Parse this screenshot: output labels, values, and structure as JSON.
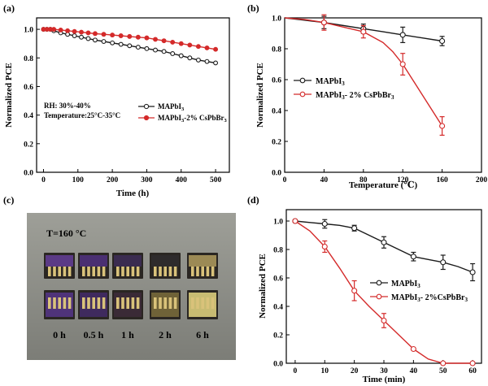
{
  "panel_labels": [
    "(a)",
    "(b)",
    "(c)",
    "(d)"
  ],
  "colors": {
    "black": "#1a1a1a",
    "red": "#d42a2a"
  },
  "chart_data": [
    {
      "id": "a",
      "type": "line",
      "xlabel": "Time (h)",
      "ylabel": "Normalized PCE",
      "xlim": [
        -20,
        540
      ],
      "ylim": [
        0.0,
        1.08
      ],
      "xticks": [
        0,
        100,
        200,
        300,
        400,
        500
      ],
      "yticks": [
        0.0,
        0.2,
        0.4,
        0.6,
        0.8,
        1.0
      ],
      "annotations": [
        "RH: 30%-40%",
        "Temperature:25°C-35°C"
      ],
      "series": [
        {
          "name": "MAPbI",
          "name_sub": "3",
          "color": "#1a1a1a",
          "x": [
            0,
            10,
            20,
            30,
            50,
            70,
            90,
            110,
            130,
            150,
            175,
            200,
            225,
            250,
            275,
            300,
            325,
            350,
            375,
            400,
            425,
            450,
            475,
            500
          ],
          "y": [
            1.0,
            1.0,
            1.0,
            0.99,
            0.975,
            0.965,
            0.955,
            0.945,
            0.935,
            0.925,
            0.915,
            0.905,
            0.895,
            0.885,
            0.875,
            0.865,
            0.855,
            0.845,
            0.83,
            0.815,
            0.8,
            0.785,
            0.775,
            0.765
          ]
        },
        {
          "name": "MAPbI",
          "name_sub": "3",
          "name_suffix": "-2% CsPbBr",
          "name_suffix_sub": "3",
          "color": "#d42a2a",
          "x": [
            0,
            10,
            20,
            30,
            50,
            70,
            90,
            110,
            130,
            150,
            175,
            200,
            225,
            250,
            275,
            300,
            325,
            350,
            375,
            400,
            425,
            450,
            475,
            500
          ],
          "y": [
            1.0,
            1.0,
            1.0,
            1.0,
            0.995,
            0.99,
            0.985,
            0.98,
            0.975,
            0.97,
            0.965,
            0.96,
            0.955,
            0.95,
            0.945,
            0.94,
            0.93,
            0.92,
            0.91,
            0.9,
            0.89,
            0.88,
            0.87,
            0.86
          ]
        }
      ]
    },
    {
      "id": "b",
      "type": "line",
      "xlabel": "Temperature (℃)",
      "ylabel": "Normalized PCE",
      "xlim": [
        0,
        200
      ],
      "ylim": [
        0.0,
        1.0
      ],
      "xticks": [
        0,
        40,
        80,
        120,
        160,
        200
      ],
      "yticks": [
        0.0,
        0.2,
        0.4,
        0.6,
        0.8,
        1.0
      ],
      "series": [
        {
          "name": "MAPbI",
          "name_sub": "3",
          "color": "#1a1a1a",
          "x": [
            40,
            80,
            120,
            160
          ],
          "y": [
            0.97,
            0.93,
            0.89,
            0.85
          ],
          "err": [
            0.04,
            0.03,
            0.05,
            0.03
          ],
          "curve_x": [
            0,
            20,
            40,
            60,
            80,
            100,
            120,
            140,
            160
          ],
          "curve_y": [
            1.0,
            0.985,
            0.97,
            0.95,
            0.93,
            0.91,
            0.89,
            0.87,
            0.85
          ]
        },
        {
          "name": "MAPbI",
          "name_sub": "3",
          "name_suffix": "- 2% CsPbBr",
          "name_suffix_sub": "3",
          "color": "#d42a2a",
          "x": [
            40,
            80,
            120,
            160
          ],
          "y": [
            0.97,
            0.91,
            0.7,
            0.3
          ],
          "err": [
            0.05,
            0.04,
            0.07,
            0.06
          ],
          "curve_x": [
            0,
            20,
            40,
            60,
            80,
            100,
            110,
            120,
            130,
            140,
            150,
            160
          ],
          "curve_y": [
            1.0,
            0.99,
            0.97,
            0.94,
            0.91,
            0.84,
            0.78,
            0.7,
            0.6,
            0.5,
            0.4,
            0.3
          ]
        }
      ]
    },
    {
      "id": "d",
      "type": "line",
      "xlabel": "Time (min)",
      "ylabel": "Normalized PCE",
      "xlim": [
        -3,
        63
      ],
      "ylim": [
        0.0,
        1.08
      ],
      "xticks": [
        0,
        10,
        20,
        30,
        40,
        50,
        60
      ],
      "yticks": [
        0.0,
        0.2,
        0.4,
        0.6,
        0.8,
        1.0
      ],
      "series": [
        {
          "name": "MAPbI",
          "name_sub": "3",
          "color": "#1a1a1a",
          "x": [
            0,
            10,
            20,
            30,
            40,
            50,
            60
          ],
          "y": [
            1.0,
            0.98,
            0.95,
            0.85,
            0.75,
            0.71,
            0.64
          ],
          "err": [
            0.0,
            0.03,
            0.02,
            0.04,
            0.03,
            0.05,
            0.06
          ],
          "curve_x": [
            0,
            5,
            10,
            15,
            20,
            25,
            30,
            35,
            40,
            45,
            50,
            55,
            60
          ],
          "curve_y": [
            1.0,
            0.99,
            0.98,
            0.97,
            0.95,
            0.9,
            0.85,
            0.8,
            0.75,
            0.73,
            0.71,
            0.68,
            0.64
          ]
        },
        {
          "name": "MAPbI",
          "name_sub": "3",
          "name_suffix": "- 2%CsPbBr",
          "name_suffix_sub": "3",
          "color": "#d42a2a",
          "x": [
            0,
            10,
            20,
            30,
            40,
            50,
            60
          ],
          "y": [
            1.0,
            0.82,
            0.51,
            0.3,
            0.1,
            0.0,
            0.0
          ],
          "err": [
            0.0,
            0.04,
            0.07,
            0.05,
            0.0,
            0.0,
            0.0
          ],
          "curve_x": [
            0,
            5,
            10,
            15,
            20,
            25,
            30,
            35,
            40,
            45,
            50,
            55,
            60
          ],
          "curve_y": [
            1.0,
            0.93,
            0.82,
            0.67,
            0.51,
            0.4,
            0.3,
            0.2,
            0.1,
            0.03,
            0.0,
            0.0,
            0.0
          ]
        }
      ]
    }
  ],
  "photo": {
    "title": "T=160 °C",
    "labels": [
      "0 h",
      "0.5 h",
      "1 h",
      "2 h",
      "6 h"
    ],
    "film_colors": [
      "#5b3a86",
      "#4a2f72",
      "#3b2c50",
      "#2e2b2c",
      "#9c8a55"
    ],
    "film_colors_bottom": [
      "#4f3379",
      "#3f2a5e",
      "#3a2a36",
      "#6f6238",
      "#c8bb72"
    ]
  }
}
